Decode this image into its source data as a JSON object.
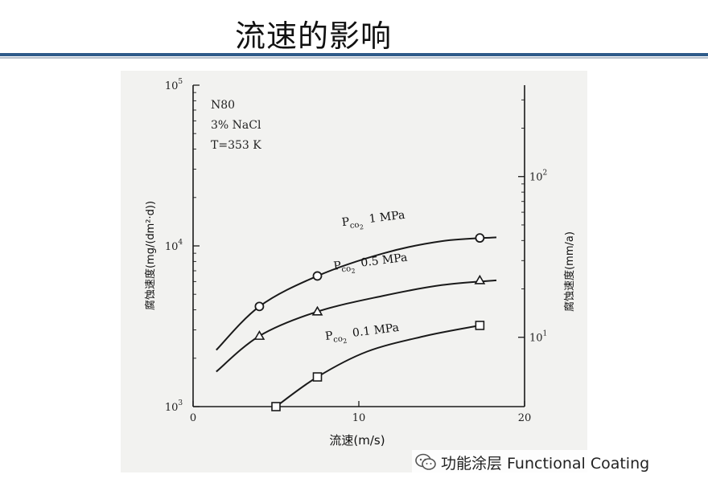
{
  "slide": {
    "title": "流速的影响"
  },
  "watermark": {
    "text": "功能涂层 Functional Coating",
    "icon": "wechat-icon"
  },
  "chart_data": {
    "type": "line",
    "title": "",
    "annotation_lines": [
      "N80",
      "3% NaCl",
      "T=353 K"
    ],
    "xlabel": "流速(m/s)",
    "ylabel_left": "腐蚀速度(mg/(dm²·d))",
    "ylabel_right": "腐蚀速度(mm/a)",
    "xlim": [
      0,
      20
    ],
    "ylim_left": [
      1000,
      100000
    ],
    "y_left_scale": "log",
    "x_ticks": [
      {
        "value": 0,
        "label": "0"
      },
      {
        "value": 10,
        "label": "10"
      },
      {
        "value": 20,
        "label": "20"
      }
    ],
    "y_left_ticks": [
      {
        "value": 1000,
        "base": "10",
        "exp": "3"
      },
      {
        "value": 10000,
        "base": "10",
        "exp": "4"
      },
      {
        "value": 100000,
        "base": "10",
        "exp": "5"
      }
    ],
    "y_right_ticks": [
      {
        "value": 10,
        "base": "10",
        "exp": "1"
      },
      {
        "value": 100,
        "base": "10",
        "exp": "2"
      }
    ],
    "y_right_to_left_factor": 270,
    "grid": false,
    "legend": "inline-labels",
    "series": [
      {
        "name": "Pco₂ 1 MPa",
        "label_main": "P",
        "label_sub": "co",
        "label_subsub": "2",
        "label_rest": "1 MPa",
        "marker": "circle",
        "label_at": {
          "x": 9.0,
          "y": 13300
        },
        "points": [
          {
            "x": 4.0,
            "y": 4200
          },
          {
            "x": 7.5,
            "y": 6500
          },
          {
            "x": 17.3,
            "y": 11200
          }
        ],
        "curve": [
          {
            "x": 1.4,
            "y": 2250
          },
          {
            "x": 4.0,
            "y": 4200
          },
          {
            "x": 7.5,
            "y": 6500
          },
          {
            "x": 11.5,
            "y": 9000
          },
          {
            "x": 15.0,
            "y": 10700
          },
          {
            "x": 18.3,
            "y": 11300
          }
        ]
      },
      {
        "name": "Pco₂ 0.5 MPa",
        "label_main": "P",
        "label_sub": "co",
        "label_subsub": "2",
        "label_rest": "0.5 MPa",
        "marker": "triangle",
        "label_at": {
          "x": 8.5,
          "y": 7100
        },
        "points": [
          {
            "x": 4.0,
            "y": 2750
          },
          {
            "x": 7.5,
            "y": 3900
          },
          {
            "x": 17.3,
            "y": 6100
          }
        ],
        "curve": [
          {
            "x": 1.4,
            "y": 1650
          },
          {
            "x": 4.0,
            "y": 2750
          },
          {
            "x": 7.5,
            "y": 3900
          },
          {
            "x": 11.5,
            "y": 4900
          },
          {
            "x": 15.0,
            "y": 5700
          },
          {
            "x": 18.3,
            "y": 6100
          }
        ]
      },
      {
        "name": "Pco₂ 0.1 MPa",
        "label_main": "P",
        "label_sub": "co",
        "label_subsub": "2",
        "label_rest": "0.1 MPa",
        "marker": "square",
        "label_at": {
          "x": 8.0,
          "y": 2600
        },
        "points": [
          {
            "x": 5.0,
            "y": 1000
          },
          {
            "x": 7.5,
            "y": 1530
          },
          {
            "x": 17.3,
            "y": 3200
          }
        ],
        "curve": [
          {
            "x": 5.0,
            "y": 1000
          },
          {
            "x": 7.5,
            "y": 1530
          },
          {
            "x": 10.5,
            "y": 2200
          },
          {
            "x": 14.0,
            "y": 2750
          },
          {
            "x": 17.3,
            "y": 3200
          }
        ]
      }
    ]
  }
}
